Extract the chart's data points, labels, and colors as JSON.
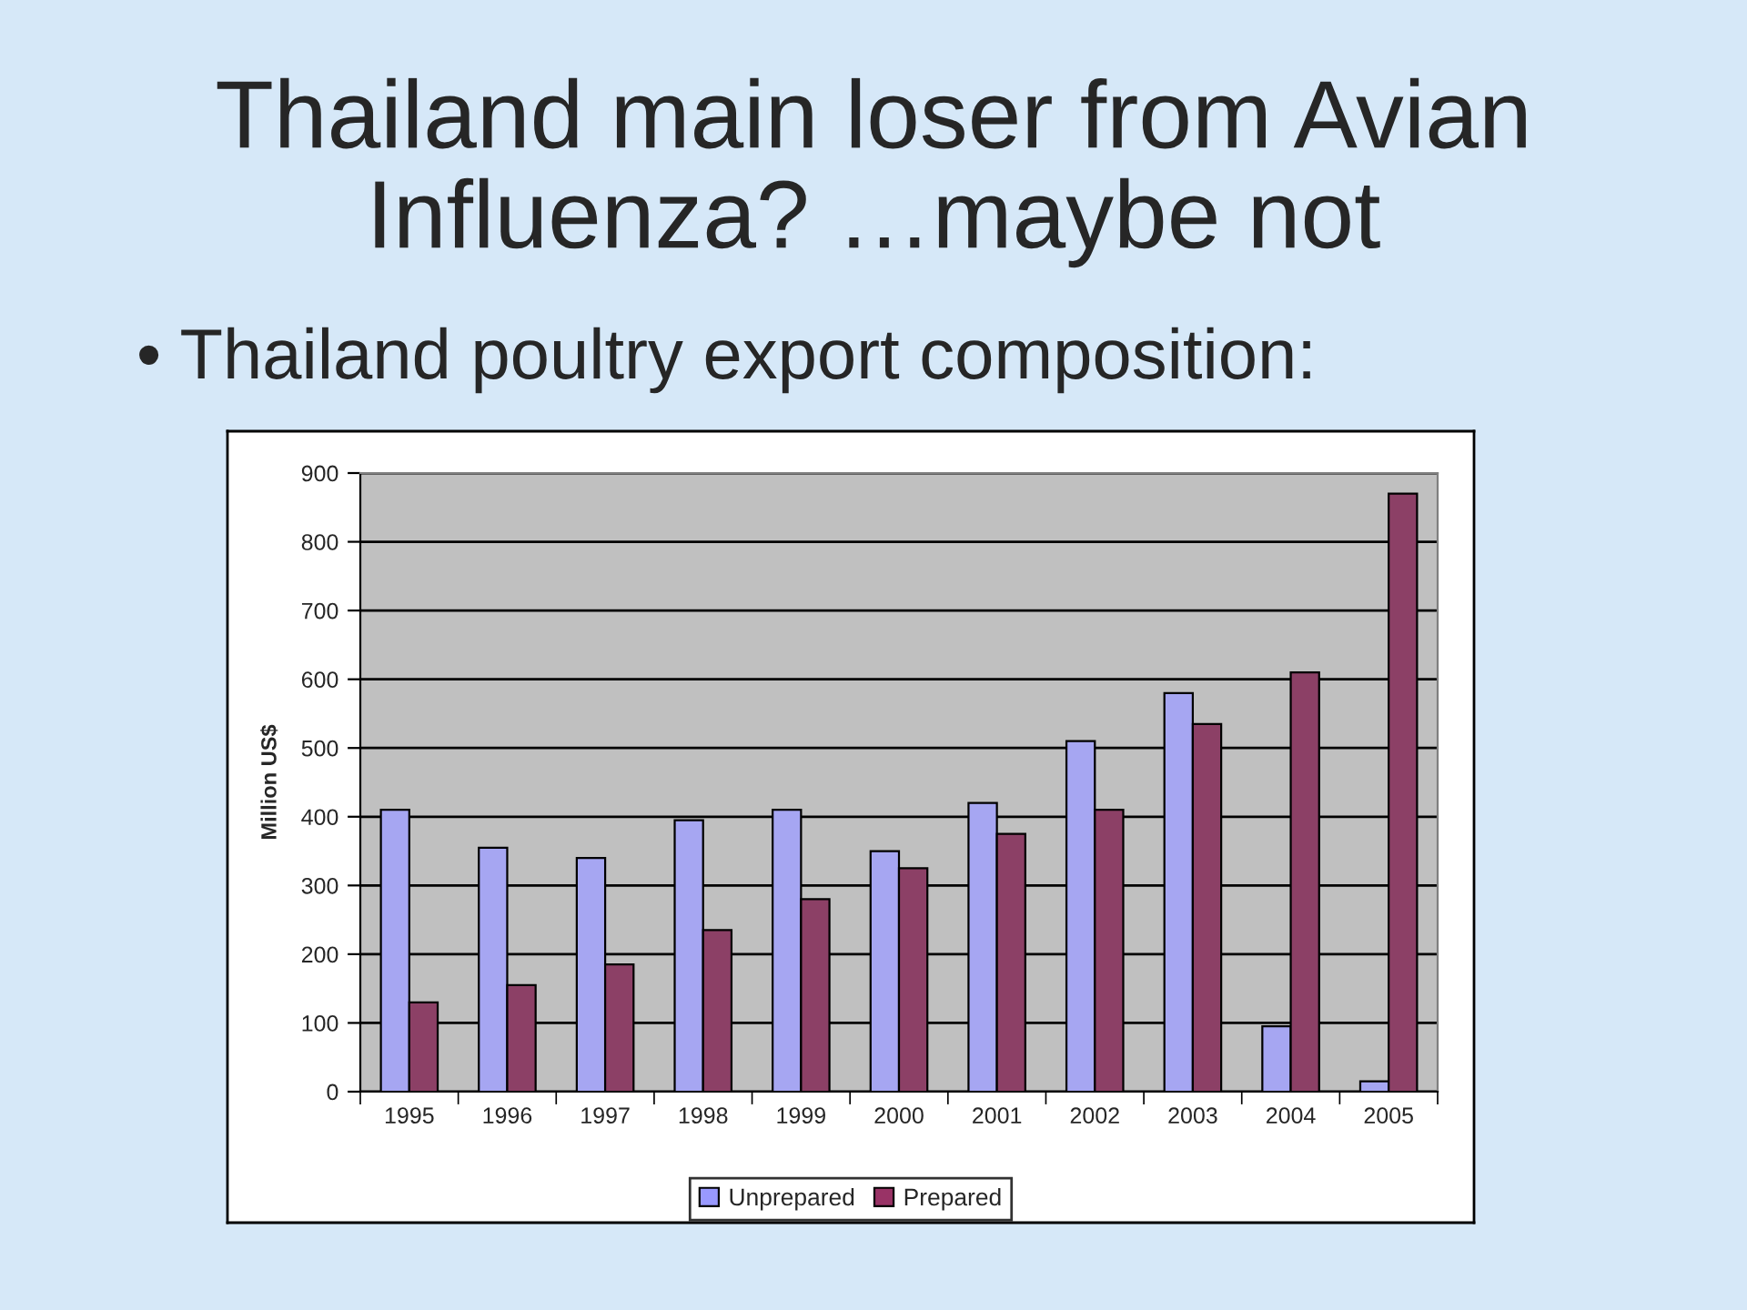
{
  "chart_data": {
    "type": "bar",
    "title": "Thailand main loser from Avian Influenza? …maybe not",
    "subtitle": "• Thailand poultry export composition:",
    "ylabel": "Million US$",
    "categories": [
      "1995",
      "1996",
      "1997",
      "1998",
      "1999",
      "2000",
      "2001",
      "2002",
      "2003",
      "2004",
      "2005"
    ],
    "series": [
      {
        "name": "Unprepared",
        "color": "#9999ff",
        "values": [
          410,
          355,
          340,
          395,
          410,
          350,
          420,
          510,
          580,
          95,
          15
        ]
      },
      {
        "name": "Prepared",
        "color": "#993366",
        "values": [
          130,
          155,
          185,
          235,
          280,
          325,
          375,
          410,
          535,
          610,
          870
        ]
      }
    ],
    "ylim": [
      0,
      900
    ],
    "yticks": [
      0,
      100,
      200,
      300,
      400,
      500,
      600,
      700,
      800,
      900
    ],
    "grid": "y",
    "legend": "bottom"
  }
}
